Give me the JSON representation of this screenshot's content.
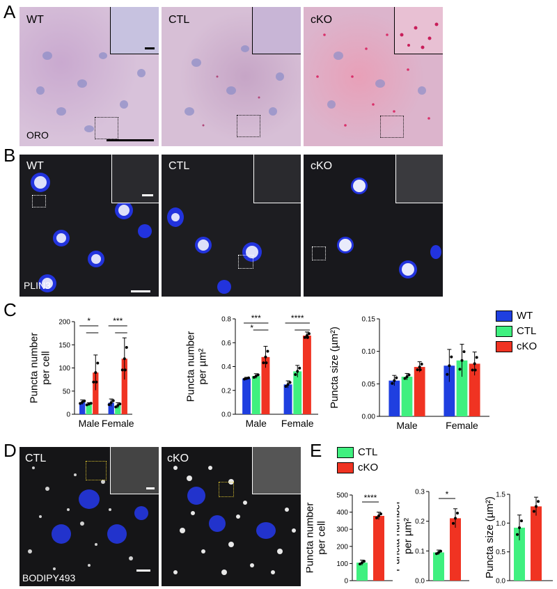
{
  "panels": {
    "A": {
      "letter": "A",
      "stain": "ORO",
      "labels": [
        "WT",
        "CTL",
        "cKO"
      ]
    },
    "B": {
      "letter": "B",
      "stain": "PLIN3",
      "labels": [
        "WT",
        "CTL",
        "cKO"
      ]
    },
    "C": {
      "letter": "C"
    },
    "D": {
      "letter": "D",
      "stain": "BODIPY493",
      "labels": [
        "CTL",
        "cKO"
      ]
    },
    "E": {
      "letter": "E"
    }
  },
  "legend_C": [
    {
      "label": "WT",
      "color": "#1f3fe0"
    },
    {
      "label": "CTL",
      "color": "#3ff07f"
    },
    {
      "label": "cKO",
      "color": "#f03322"
    }
  ],
  "legend_E": [
    {
      "label": "CTL",
      "color": "#3ff07f"
    },
    {
      "label": "cKO",
      "color": "#f03322"
    }
  ],
  "chart_data": [
    {
      "id": "C1",
      "type": "bar",
      "ylabel": [
        "Puncta number",
        "per cell"
      ],
      "categories": [
        "Male",
        "Female"
      ],
      "ylim": [
        0,
        200
      ],
      "yticks": [
        0,
        50,
        100,
        150,
        200
      ],
      "series": [
        {
          "name": "WT",
          "values": [
            26,
            25
          ],
          "err": [
            5,
            8
          ]
        },
        {
          "name": "CTL",
          "values": [
            22,
            19
          ],
          "err": [
            3,
            6
          ]
        },
        {
          "name": "cKO",
          "values": [
            90,
            120
          ],
          "err": [
            38,
            45
          ]
        }
      ],
      "significance": [
        {
          "group": 0,
          "from": 0,
          "to": 2,
          "label": "*"
        },
        {
          "group": 0,
          "from": 1,
          "to": 2,
          "label": ""
        },
        {
          "group": 1,
          "from": 0,
          "to": 2,
          "label": "***"
        },
        {
          "group": 1,
          "from": 1,
          "to": 2,
          "label": ""
        }
      ]
    },
    {
      "id": "C2",
      "type": "bar",
      "ylabel": [
        "Puncta number",
        "per µm²"
      ],
      "categories": [
        "Male",
        "Female"
      ],
      "ylim": [
        0,
        0.8
      ],
      "yticks": [
        0.0,
        0.2,
        0.4,
        0.6,
        0.8
      ],
      "series": [
        {
          "name": "WT",
          "values": [
            0.3,
            0.25
          ],
          "err": [
            0.01,
            0.03
          ]
        },
        {
          "name": "CTL",
          "values": [
            0.32,
            0.36
          ],
          "err": [
            0.02,
            0.05
          ]
        },
        {
          "name": "cKO",
          "values": [
            0.48,
            0.66
          ],
          "err": [
            0.09,
            0.03
          ]
        }
      ],
      "significance": [
        {
          "group": 0,
          "from": 0,
          "to": 2,
          "label": "***"
        },
        {
          "group": 0,
          "from": 1,
          "to": 2,
          "label": "*"
        },
        {
          "group": 1,
          "from": 0,
          "to": 2,
          "label": "****"
        },
        {
          "group": 1,
          "from": 1,
          "to": 2,
          "label": ""
        }
      ]
    },
    {
      "id": "C3",
      "type": "bar",
      "ylabel": [
        "Puncta size (µm²)"
      ],
      "categories": [
        "Male",
        "Female"
      ],
      "ylim": [
        0,
        0.15
      ],
      "yticks": [
        0.0,
        0.05,
        0.1,
        0.15
      ],
      "series": [
        {
          "name": "WT",
          "values": [
            0.055,
            0.078
          ],
          "err": [
            0.008,
            0.025
          ]
        },
        {
          "name": "CTL",
          "values": [
            0.061,
            0.086
          ],
          "err": [
            0.005,
            0.025
          ]
        },
        {
          "name": "cKO",
          "values": [
            0.076,
            0.081
          ],
          "err": [
            0.008,
            0.018
          ]
        }
      ],
      "significance": []
    },
    {
      "id": "E1",
      "type": "bar",
      "ylabel": [
        "Puncta number",
        "per cell"
      ],
      "categories": [
        "CTL",
        "cKO"
      ],
      "ylim": [
        0,
        500
      ],
      "yticks": [
        0,
        100,
        200,
        300,
        400,
        500
      ],
      "values": [
        105,
        378
      ],
      "err": [
        15,
        22
      ],
      "significance": [
        {
          "from": 0,
          "to": 1,
          "label": "****"
        }
      ]
    },
    {
      "id": "E2",
      "type": "bar",
      "ylabel": [
        "Puncta number",
        "per µm²"
      ],
      "categories": [
        "CTL",
        "cKO"
      ],
      "ylim": [
        0,
        0.3
      ],
      "yticks": [
        0.0,
        0.1,
        0.2,
        0.3
      ],
      "values": [
        0.095,
        0.21
      ],
      "err": [
        0.008,
        0.032
      ],
      "significance": [
        {
          "from": 0,
          "to": 1,
          "label": "*"
        }
      ]
    },
    {
      "id": "E3",
      "type": "bar",
      "ylabel": [
        "Puncta size (µm²)"
      ],
      "categories": [
        "CTL",
        "cKO"
      ],
      "ylim": [
        0,
        1.5
      ],
      "yticks": [
        0.0,
        0.5,
        1.0,
        1.5
      ],
      "values": [
        0.92,
        1.29
      ],
      "err": [
        0.22,
        0.16
      ],
      "significance": []
    }
  ]
}
